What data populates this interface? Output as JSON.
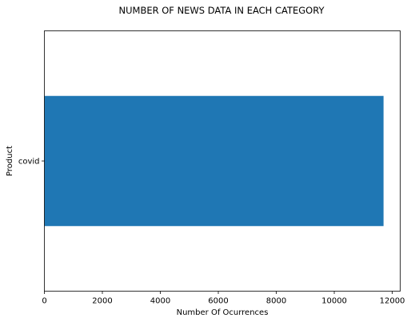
{
  "chart_data": {
    "type": "bar",
    "orientation": "horizontal",
    "title": "NUMBER OF NEWS DATA IN EACH CATEGORY",
    "xlabel": "Number Of Ocurrences",
    "ylabel": "Product",
    "categories": [
      "covid"
    ],
    "values": [
      11700
    ],
    "xlim": [
      0,
      12275
    ],
    "xticks": [
      0,
      2000,
      4000,
      6000,
      8000,
      10000,
      12000
    ],
    "grid": false,
    "legend": "none",
    "bar_color": "#1f77b4"
  }
}
